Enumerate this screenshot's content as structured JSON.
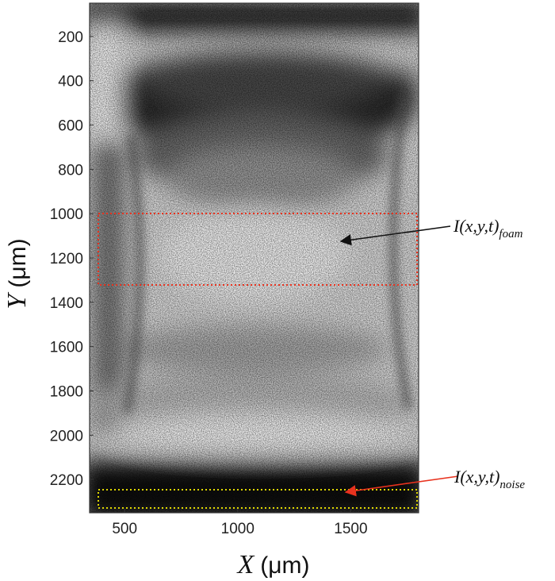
{
  "figure": {
    "x_axis": {
      "symbol": "X",
      "unit": "(μm)",
      "range": [
        345,
        1800
      ],
      "ticks": [
        {
          "value": 500,
          "label": "500"
        },
        {
          "value": 1000,
          "label": "1000"
        },
        {
          "value": 1500,
          "label": "1500"
        }
      ]
    },
    "y_axis": {
      "symbol": "Y",
      "unit": "(μm)",
      "range": [
        50,
        2350
      ],
      "ticks": [
        {
          "value": 200,
          "label": "200"
        },
        {
          "value": 400,
          "label": "400"
        },
        {
          "value": 600,
          "label": "600"
        },
        {
          "value": 800,
          "label": "800"
        },
        {
          "value": 1000,
          "label": "1000"
        },
        {
          "value": 1200,
          "label": "1200"
        },
        {
          "value": 1400,
          "label": "1400"
        },
        {
          "value": 1600,
          "label": "1600"
        },
        {
          "value": 1800,
          "label": "1800"
        },
        {
          "value": 2000,
          "label": "2000"
        },
        {
          "value": 2200,
          "label": "2200"
        }
      ]
    },
    "annotations": [
      {
        "name": "foam",
        "main": "I(x,y,t)",
        "sub": "foam",
        "box_color": "#e8321e",
        "arrow_color": "#111111"
      },
      {
        "name": "noise",
        "main": "I(x,y,t)",
        "sub": "noise",
        "box_color": "#e0d800",
        "arrow_color": "#e8321e"
      }
    ]
  }
}
